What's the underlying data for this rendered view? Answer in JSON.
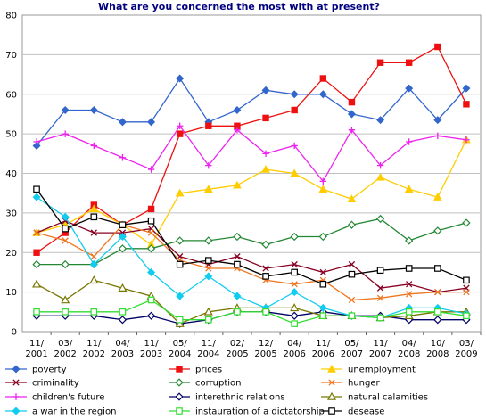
{
  "chart_data": {
    "type": "line",
    "title": "What are you concerned the most with at present?",
    "xlabel": "",
    "ylabel": "",
    "ylim": [
      0,
      80
    ],
    "yticks": [
      0,
      10,
      20,
      30,
      40,
      50,
      60,
      70,
      80
    ],
    "grid": "horizontal",
    "legend_placement": "bottom",
    "categories": [
      [
        "11/",
        "2001"
      ],
      [
        "03/",
        "2002"
      ],
      [
        "11/",
        "2002"
      ],
      [
        "04/",
        "2003"
      ],
      [
        "11/",
        "2003"
      ],
      [
        "05/",
        "2004"
      ],
      [
        "11/",
        "2004"
      ],
      [
        "02/",
        "2005"
      ],
      [
        "12/",
        "2005"
      ],
      [
        "04/",
        "2006"
      ],
      [
        "11/",
        "2006"
      ],
      [
        "05/",
        "2007"
      ],
      [
        "11/",
        "2007"
      ],
      [
        "04/",
        "2008"
      ],
      [
        "10/",
        "2008"
      ],
      [
        "03/",
        "2009"
      ]
    ],
    "x_positions": [
      0,
      1,
      2,
      3,
      4,
      5,
      6,
      7,
      8,
      9,
      10,
      11,
      12,
      13,
      14,
      15
    ],
    "series": [
      {
        "name": "poverty",
        "color": "#3366cc",
        "marker": "diamond",
        "points": [
          [
            0,
            47
          ],
          [
            1,
            56
          ],
          [
            2,
            56
          ],
          [
            3,
            53
          ],
          [
            4,
            53
          ],
          [
            5,
            64
          ],
          [
            6,
            53
          ],
          [
            7,
            56
          ],
          [
            8,
            61
          ],
          [
            9,
            60
          ],
          [
            10,
            60
          ],
          [
            11,
            55
          ],
          [
            12,
            53.5
          ],
          [
            13,
            61.5
          ],
          [
            14,
            53.5
          ],
          [
            15,
            61.5
          ]
        ]
      },
      {
        "name": "prices",
        "color": "#ee1111",
        "marker": "square",
        "points": [
          [
            0,
            20
          ],
          [
            1,
            25
          ],
          [
            2,
            32
          ],
          [
            3,
            27
          ],
          [
            4,
            31
          ],
          [
            5,
            50
          ],
          [
            6,
            52
          ],
          [
            7,
            52
          ],
          [
            8,
            54
          ],
          [
            9,
            56
          ],
          [
            10,
            64
          ],
          [
            11,
            58
          ],
          [
            12,
            68
          ],
          [
            13,
            68
          ],
          [
            14,
            72
          ],
          [
            15,
            57.5
          ]
        ]
      },
      {
        "name": "unemployment",
        "color": "#ffcc00",
        "marker": "triangle",
        "points": [
          [
            0,
            25
          ],
          [
            1,
            27
          ],
          [
            2,
            31
          ],
          [
            3,
            27
          ],
          [
            4,
            22
          ],
          [
            5,
            35
          ],
          [
            6,
            36
          ],
          [
            7,
            37
          ],
          [
            8,
            41
          ],
          [
            9,
            40
          ],
          [
            10,
            36
          ],
          [
            11,
            33.5
          ],
          [
            12,
            39
          ],
          [
            13,
            36
          ],
          [
            14,
            34
          ],
          [
            15,
            48.5
          ]
        ]
      },
      {
        "name": "criminality",
        "color": "#880022",
        "marker": "x",
        "points": [
          [
            0,
            25
          ],
          [
            1,
            28
          ],
          [
            2,
            25
          ],
          [
            3,
            25
          ],
          [
            4,
            26
          ],
          [
            5,
            19
          ],
          [
            6,
            17
          ],
          [
            7,
            19
          ],
          [
            8,
            16
          ],
          [
            9,
            17
          ],
          [
            10,
            15
          ],
          [
            11,
            17
          ],
          [
            12,
            11
          ],
          [
            13,
            12
          ],
          [
            14,
            10
          ],
          [
            15,
            11
          ]
        ]
      },
      {
        "name": "corruption",
        "color": "#228833",
        "marker": "diamond-open",
        "points": [
          [
            0,
            17
          ],
          [
            1,
            17
          ],
          [
            2,
            17
          ],
          [
            3,
            21
          ],
          [
            4,
            21
          ],
          [
            5,
            23
          ],
          [
            6,
            23
          ],
          [
            7,
            24
          ],
          [
            8,
            22
          ],
          [
            9,
            24
          ],
          [
            10,
            24
          ],
          [
            11,
            27
          ],
          [
            12,
            28.5
          ],
          [
            13,
            23
          ],
          [
            14,
            25.5
          ],
          [
            15,
            27.5
          ]
        ]
      },
      {
        "name": "hunger",
        "color": "#ee7722",
        "marker": "x",
        "points": [
          [
            0,
            25
          ],
          [
            1,
            23
          ],
          [
            2,
            19
          ],
          [
            3,
            27
          ],
          [
            4,
            25
          ],
          [
            5,
            18
          ],
          [
            6,
            16
          ],
          [
            7,
            16
          ],
          [
            8,
            13
          ],
          [
            9,
            12
          ],
          [
            10,
            13
          ],
          [
            11,
            8
          ],
          [
            12,
            8.5
          ],
          [
            13,
            9.5
          ],
          [
            14,
            10
          ],
          [
            15,
            10
          ]
        ]
      },
      {
        "name": "children's future",
        "color": "#ee22ee",
        "marker": "plus",
        "points": [
          [
            0,
            48
          ],
          [
            1,
            50
          ],
          [
            2,
            47
          ],
          [
            3,
            44
          ],
          [
            4,
            41
          ],
          [
            5,
            52
          ],
          [
            6,
            42
          ],
          [
            7,
            51
          ],
          [
            8,
            45
          ],
          [
            9,
            47
          ],
          [
            10,
            38
          ],
          [
            11,
            51
          ],
          [
            12,
            42
          ],
          [
            13,
            48
          ],
          [
            14,
            49.5
          ],
          [
            15,
            48.5
          ]
        ]
      },
      {
        "name": "interethnic relations",
        "color": "#000066",
        "marker": "diamond-open",
        "points": [
          [
            0,
            4
          ],
          [
            1,
            4
          ],
          [
            2,
            4
          ],
          [
            3,
            3
          ],
          [
            4,
            4
          ],
          [
            5,
            2
          ],
          [
            6,
            3
          ],
          [
            7,
            5
          ],
          [
            8,
            5
          ],
          [
            9,
            4
          ],
          [
            10,
            5
          ],
          [
            11,
            4
          ],
          [
            12,
            4
          ],
          [
            13,
            3
          ],
          [
            14,
            3
          ],
          [
            15,
            3
          ]
        ]
      },
      {
        "name": "natural calamities",
        "color": "#777700",
        "marker": "triangle-open",
        "points": [
          [
            0,
            12
          ],
          [
            1,
            8
          ],
          [
            2,
            13
          ],
          [
            3,
            11
          ],
          [
            4,
            9
          ],
          [
            5,
            2
          ],
          [
            6,
            5
          ],
          [
            7,
            6
          ],
          [
            8,
            6
          ],
          [
            9,
            6
          ],
          [
            10,
            4
          ],
          [
            11,
            4
          ],
          [
            12,
            3.5
          ],
          [
            13,
            4
          ],
          [
            14,
            5
          ],
          [
            15,
            5
          ]
        ]
      },
      {
        "name": "a war in the region",
        "color": "#11ccee",
        "marker": "diamond",
        "points": [
          [
            0,
            34
          ],
          [
            1,
            29
          ],
          [
            2,
            17
          ],
          [
            3,
            24
          ],
          [
            4,
            15
          ],
          [
            5,
            9
          ],
          [
            6,
            14
          ],
          [
            7,
            9
          ],
          [
            8,
            6
          ],
          [
            9,
            10
          ],
          [
            10,
            6
          ],
          [
            11,
            4
          ],
          [
            12,
            3.5
          ],
          [
            13,
            6
          ],
          [
            14,
            6
          ],
          [
            15,
            4.5
          ]
        ]
      },
      {
        "name": "instauration of a dictatorship",
        "color": "#33dd33",
        "marker": "square-open",
        "points": [
          [
            0,
            5
          ],
          [
            1,
            5
          ],
          [
            2,
            5
          ],
          [
            3,
            5
          ],
          [
            4,
            8
          ],
          [
            5,
            3
          ],
          [
            6,
            3
          ],
          [
            7,
            5
          ],
          [
            8,
            5
          ],
          [
            9,
            2
          ],
          [
            10,
            4
          ],
          [
            11,
            4
          ],
          [
            12,
            3.5
          ],
          [
            13,
            5
          ],
          [
            14,
            5
          ],
          [
            15,
            4
          ]
        ]
      },
      {
        "name": "desease",
        "color": "#000000",
        "marker": "square-open",
        "points": [
          [
            0,
            36
          ],
          [
            1,
            26
          ],
          [
            2,
            29
          ],
          [
            3,
            27
          ],
          [
            4,
            28
          ],
          [
            5,
            17
          ],
          [
            6,
            18
          ],
          [
            7,
            17
          ],
          [
            8,
            14
          ],
          [
            9,
            15
          ],
          [
            10,
            12
          ],
          [
            11,
            14.5
          ],
          [
            12,
            15.5
          ],
          [
            13,
            16
          ],
          [
            14,
            16
          ],
          [
            15,
            13
          ]
        ]
      }
    ]
  }
}
